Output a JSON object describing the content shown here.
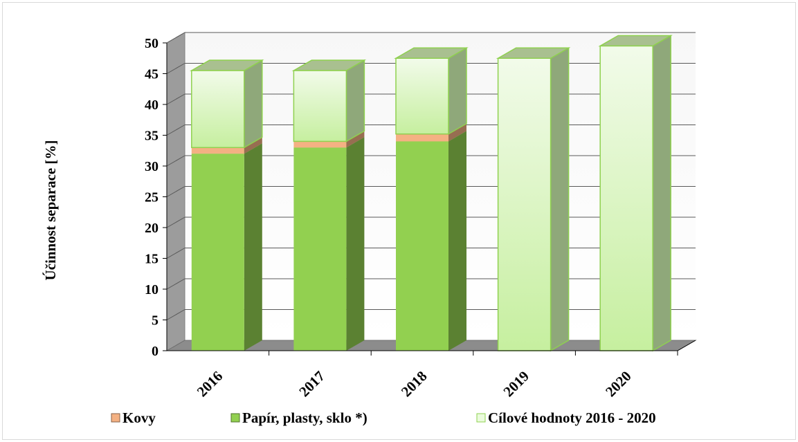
{
  "chart_data": {
    "type": "bar",
    "stacked": true,
    "style": "3d",
    "title": "",
    "xlabel": "",
    "ylabel": "Účinnost separace [%]",
    "ylim": [
      0,
      50
    ],
    "yticks": [
      0,
      5,
      10,
      15,
      20,
      25,
      30,
      35,
      40,
      45,
      50
    ],
    "grid": true,
    "legend_position": "bottom",
    "categories": [
      "2016",
      "2017",
      "2018",
      "2019",
      "2020"
    ],
    "series": [
      {
        "name": "Papír, plasty, sklo *)",
        "color": "#92d050",
        "values": [
          32,
          33,
          34,
          0,
          0
        ]
      },
      {
        "name": "Kovy",
        "color": "#f4b183",
        "values": [
          1,
          1,
          1.2,
          0,
          0
        ]
      },
      {
        "name": "Cílové hodnoty 2016 - 2020",
        "color": "#e6f8d8",
        "values": [
          12.5,
          11.5,
          12.3,
          47.5,
          49.5
        ]
      }
    ],
    "legend_order": [
      "Kovy",
      "Papír, plasty, sklo *)",
      "Cílové hodnoty 2016 - 2020"
    ]
  }
}
